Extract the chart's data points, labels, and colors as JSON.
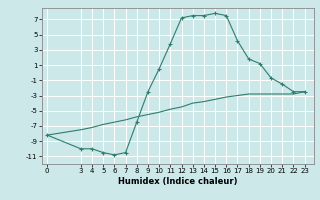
{
  "title": "",
  "xlabel": "Humidex (Indice chaleur)",
  "background_color": "#cce8e8",
  "grid_color": "#ffffff",
  "line_color": "#2e7d6e",
  "line1_x": [
    0,
    3,
    4,
    5,
    6,
    7,
    8,
    9,
    10,
    11,
    12,
    13,
    14,
    15,
    16,
    17,
    18,
    19,
    20,
    21,
    22,
    23
  ],
  "line1_y": [
    -8.2,
    -10.0,
    -10.0,
    -10.5,
    -10.8,
    -10.5,
    -6.5,
    -2.5,
    0.5,
    3.8,
    7.2,
    7.5,
    7.5,
    7.8,
    7.5,
    4.2,
    1.8,
    1.2,
    -0.7,
    -1.5,
    -2.5,
    -2.5
  ],
  "line2_x": [
    0,
    3,
    4,
    5,
    6,
    7,
    8,
    9,
    10,
    11,
    12,
    13,
    14,
    15,
    16,
    17,
    18,
    19,
    20,
    21,
    22,
    23
  ],
  "line2_y": [
    -8.2,
    -7.5,
    -7.2,
    -6.8,
    -6.5,
    -6.2,
    -5.8,
    -5.5,
    -5.2,
    -4.8,
    -4.5,
    -4.0,
    -3.8,
    -3.5,
    -3.2,
    -3.0,
    -2.8,
    -2.8,
    -2.8,
    -2.8,
    -2.8,
    -2.5
  ],
  "ylim": [
    -12,
    8.5
  ],
  "yticks": [
    -11,
    -9,
    -7,
    -5,
    -3,
    -1,
    1,
    3,
    5,
    7
  ],
  "xticks": [
    0,
    3,
    4,
    5,
    6,
    7,
    8,
    9,
    10,
    11,
    12,
    13,
    14,
    15,
    16,
    17,
    18,
    19,
    20,
    21,
    22,
    23
  ],
  "xlim": [
    -0.5,
    23.8
  ],
  "marker": "+",
  "markersize": 3.5,
  "markeredgewidth": 0.8,
  "linewidth": 0.8,
  "tick_labelsize": 5.0,
  "xlabel_fontsize": 6.0
}
